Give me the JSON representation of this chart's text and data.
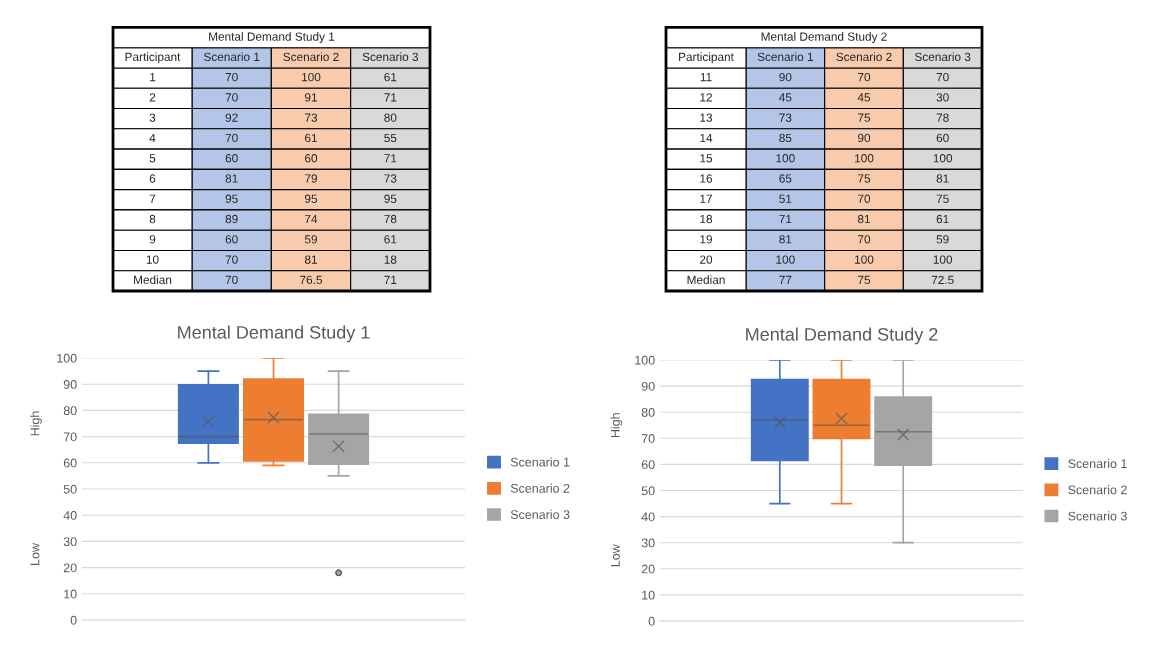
{
  "chart_data": [
    {
      "type": "heatmap",
      "title": "Mental Demand Study 1",
      "ylabel": "Participant",
      "data_labels": true,
      "categories": [
        "Scenario 1",
        "Scenario 2",
        "Scenario 3"
      ],
      "y_categories": [
        "1",
        "2",
        "3",
        "4",
        "5",
        "6",
        "7",
        "8",
        "9",
        "10",
        "Median"
      ],
      "colors": [
        "#b4c6e7",
        "#f8cbad",
        "#d9d9d9"
      ],
      "cells": [
        [
          70,
          100,
          61
        ],
        [
          70,
          91,
          71
        ],
        [
          92,
          73,
          80
        ],
        [
          70,
          61,
          55
        ],
        [
          60,
          60,
          71
        ],
        [
          81,
          79,
          73
        ],
        [
          95,
          95,
          95
        ],
        [
          89,
          74,
          78
        ],
        [
          60,
          59,
          61
        ],
        [
          70,
          81,
          18
        ],
        [
          70,
          76.5,
          71
        ]
      ]
    },
    {
      "type": "heatmap",
      "title": "Mental Demand Study 2",
      "ylabel": "Participant",
      "data_labels": true,
      "categories": [
        "Scenario 1",
        "Scenario 2",
        "Scenario 3"
      ],
      "y_categories": [
        "11",
        "12",
        "13",
        "14",
        "15",
        "16",
        "17",
        "18",
        "19",
        "20",
        "Median"
      ],
      "colors": [
        "#b4c6e7",
        "#f8cbad",
        "#d9d9d9"
      ],
      "cells": [
        [
          90,
          70,
          70
        ],
        [
          45,
          45,
          30
        ],
        [
          73,
          75,
          78
        ],
        [
          85,
          90,
          60
        ],
        [
          100,
          100,
          100
        ],
        [
          65,
          75,
          81
        ],
        [
          51,
          70,
          75
        ],
        [
          71,
          81,
          61
        ],
        [
          81,
          70,
          59
        ],
        [
          100,
          100,
          100
        ],
        [
          77,
          75,
          72.5
        ]
      ]
    },
    {
      "type": "box",
      "title": "Mental Demand Study 1",
      "categories": [
        null
      ],
      "ylim": [
        0,
        100
      ],
      "yticks": [
        0,
        10,
        20,
        30,
        40,
        50,
        60,
        70,
        80,
        90,
        100
      ],
      "grid": "y",
      "legend": "right",
      "annotations": [
        "High",
        "Low"
      ],
      "series": [
        {
          "name": "Scenario 1",
          "color": "#4472c4",
          "boxes": [
            {
              "low": 60,
              "q1": 67.5,
              "median": 70,
              "q3": 89.75,
              "high": 95,
              "mean": 75.7
            }
          ]
        },
        {
          "name": "Scenario 2",
          "color": "#ed7d31",
          "boxes": [
            {
              "low": 59,
              "q1": 60.75,
              "median": 76.5,
              "q3": 92,
              "high": 100,
              "mean": 77.3
            }
          ]
        },
        {
          "name": "Scenario 3",
          "color": "#a5a5a5",
          "boxes": [
            {
              "low": 55,
              "q1": 59.5,
              "median": 71,
              "q3": 78.5,
              "high": 95,
              "mean": 66.3,
              "outliers": [
                18
              ]
            }
          ]
        }
      ]
    },
    {
      "type": "box",
      "title": "Mental Demand Study 2",
      "categories": [
        null
      ],
      "ylim": [
        0,
        100
      ],
      "yticks": [
        0,
        10,
        20,
        30,
        40,
        50,
        60,
        70,
        80,
        90,
        100
      ],
      "grid": "y",
      "legend": "right",
      "annotations": [
        "High",
        "Low"
      ],
      "series": [
        {
          "name": "Scenario 1",
          "color": "#4472c4",
          "boxes": [
            {
              "low": 45,
              "q1": 61.5,
              "median": 77,
              "q3": 92.5,
              "high": 100,
              "mean": 76.1
            }
          ]
        },
        {
          "name": "Scenario 2",
          "color": "#ed7d31",
          "boxes": [
            {
              "low": 45,
              "q1": 70,
              "median": 75,
              "q3": 92.5,
              "high": 100,
              "mean": 77.6
            }
          ]
        },
        {
          "name": "Scenario 3",
          "color": "#a5a5a5",
          "boxes": [
            {
              "low": 30,
              "q1": 59.75,
              "median": 72.5,
              "q3": 85.75,
              "high": 100,
              "mean": 71.4
            }
          ]
        }
      ]
    }
  ]
}
